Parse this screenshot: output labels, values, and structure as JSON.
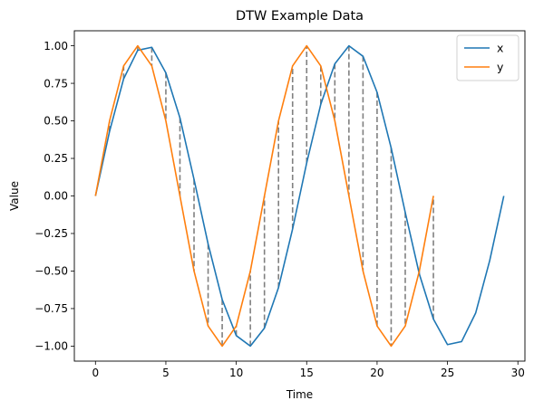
{
  "chart_data": {
    "type": "line",
    "title": "DTW Example Data",
    "xlabel": "Time",
    "ylabel": "Value",
    "xlim": [
      -1.5,
      30.5
    ],
    "ylim": [
      -1.1,
      1.1
    ],
    "xticks": [
      0,
      5,
      10,
      15,
      20,
      25,
      30
    ],
    "xtick_labels": [
      "0",
      "5",
      "10",
      "15",
      "20",
      "25",
      "30"
    ],
    "yticks": [
      1.0,
      0.75,
      0.5,
      0.25,
      0.0,
      -0.25,
      -0.5,
      -0.75,
      -1.0
    ],
    "ytick_labels": [
      "1.00",
      "0.75",
      "0.50",
      "0.25",
      "0.00",
      "−0.25",
      "−0.50",
      "−0.75",
      "−1.00"
    ],
    "grid": false,
    "legend_position": "top-right",
    "series": [
      {
        "name": "x",
        "color": "#1f77b4",
        "x": [
          0,
          1,
          2,
          3,
          4,
          5,
          6,
          7,
          8,
          9,
          10,
          11,
          12,
          13,
          14,
          15,
          16,
          17,
          18,
          19,
          20,
          21,
          22,
          23,
          24,
          25,
          26,
          27,
          28,
          29
        ],
        "values": [
          0.0,
          0.43,
          0.78,
          0.97,
          0.99,
          0.82,
          0.52,
          0.11,
          -0.32,
          -0.69,
          -0.93,
          -1.0,
          -0.88,
          -0.61,
          -0.22,
          0.22,
          0.61,
          0.88,
          1.0,
          0.93,
          0.69,
          0.32,
          -0.11,
          -0.52,
          -0.82,
          -0.99,
          -0.97,
          -0.78,
          -0.43,
          0.0
        ]
      },
      {
        "name": "y",
        "color": "#ff7f0e",
        "x": [
          0,
          1,
          2,
          3,
          4,
          5,
          6,
          7,
          8,
          9,
          10,
          11,
          12,
          13,
          14,
          15,
          16,
          17,
          18,
          19,
          20,
          21,
          22,
          23,
          24
        ],
        "values": [
          0.0,
          0.5,
          0.866,
          1.0,
          0.866,
          0.5,
          0.0,
          -0.5,
          -0.866,
          -1.0,
          -0.866,
          -0.5,
          0.0,
          0.5,
          0.866,
          1.0,
          0.866,
          0.5,
          0.0,
          -0.5,
          -0.866,
          -1.0,
          -0.866,
          -0.5,
          0.0
        ]
      }
    ],
    "alignment_lines": {
      "color": "#808080",
      "style": "dashed",
      "pairs": [
        [
          [
            0,
            0.0
          ],
          [
            0,
            0.0
          ]
        ],
        [
          [
            1,
            0.43
          ],
          [
            1,
            0.5
          ]
        ],
        [
          [
            2,
            0.78
          ],
          [
            2,
            0.866
          ]
        ],
        [
          [
            3,
            0.97
          ],
          [
            3,
            1.0
          ]
        ],
        [
          [
            4,
            0.99
          ],
          [
            4,
            0.866
          ]
        ],
        [
          [
            5,
            0.82
          ],
          [
            5,
            0.5
          ]
        ],
        [
          [
            6,
            0.52
          ],
          [
            6,
            0.0
          ]
        ],
        [
          [
            7,
            0.11
          ],
          [
            7,
            -0.5
          ]
        ],
        [
          [
            8,
            -0.32
          ],
          [
            8,
            -0.866
          ]
        ],
        [
          [
            9,
            -0.69
          ],
          [
            9,
            -1.0
          ]
        ],
        [
          [
            10,
            -0.93
          ],
          [
            10,
            -0.866
          ]
        ],
        [
          [
            11,
            -1.0
          ],
          [
            11,
            -0.5
          ]
        ],
        [
          [
            12,
            -0.88
          ],
          [
            12,
            0.0
          ]
        ],
        [
          [
            13,
            -0.61
          ],
          [
            13,
            0.5
          ]
        ],
        [
          [
            14,
            -0.22
          ],
          [
            14,
            0.866
          ]
        ],
        [
          [
            15,
            0.22
          ],
          [
            15,
            1.0
          ]
        ],
        [
          [
            16,
            0.61
          ],
          [
            16,
            0.866
          ]
        ],
        [
          [
            17,
            0.88
          ],
          [
            17,
            0.5
          ]
        ],
        [
          [
            18,
            1.0
          ],
          [
            18,
            0.0
          ]
        ],
        [
          [
            19,
            0.93
          ],
          [
            19,
            -0.5
          ]
        ],
        [
          [
            20,
            0.69
          ],
          [
            20,
            -0.866
          ]
        ],
        [
          [
            21,
            0.32
          ],
          [
            21,
            -1.0
          ]
        ],
        [
          [
            22,
            -0.11
          ],
          [
            22,
            -0.866
          ]
        ],
        [
          [
            23,
            -0.52
          ],
          [
            23,
            -0.5
          ]
        ],
        [
          [
            24,
            -0.82
          ],
          [
            24,
            0.0
          ]
        ]
      ]
    }
  }
}
